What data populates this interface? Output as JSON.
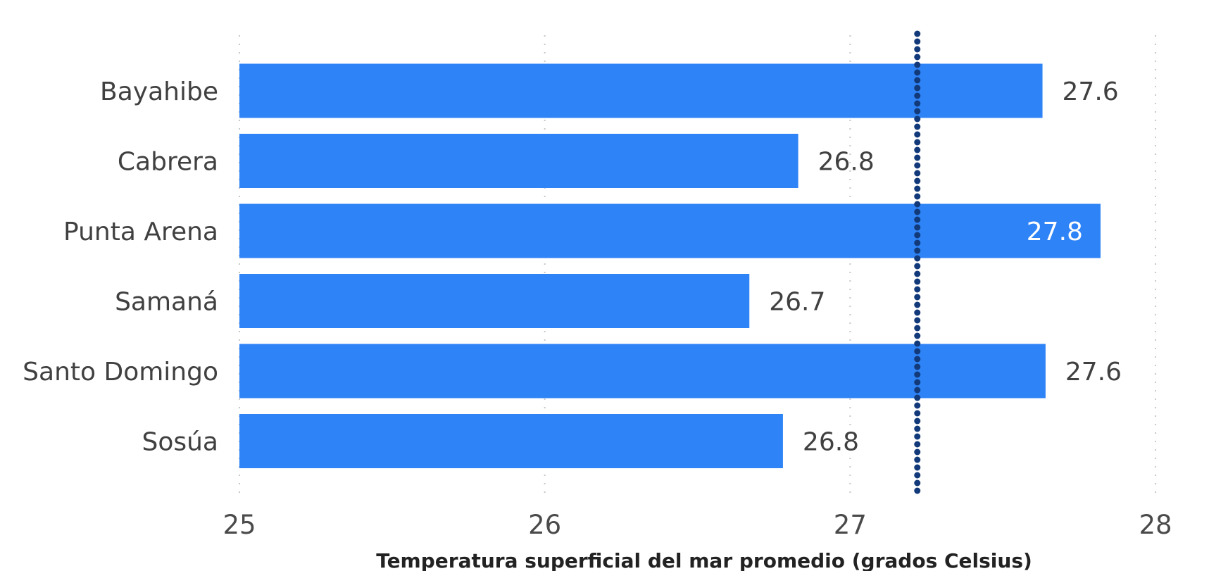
{
  "chart_data": {
    "type": "bar",
    "orientation": "horizontal",
    "categories": [
      "Bayahibe",
      "Cabrera",
      "Punta Arena",
      "Samaná",
      "Santo Domingo",
      "Sosúa"
    ],
    "values": [
      27.63,
      26.83,
      27.82,
      26.67,
      27.64,
      26.78
    ],
    "data_labels": [
      "27.6",
      "26.8",
      "27.8",
      "26.7",
      "27.6",
      "26.8"
    ],
    "xlim": [
      25,
      28
    ],
    "x_ticks": [
      "25",
      "26",
      "27",
      "28"
    ],
    "xlabel": "Temperatura superficial del mar promedio (grados Celsius)",
    "ylabel": "",
    "reference_line": {
      "value": 27.22,
      "style": "dotted"
    },
    "grid": "vertical dotted",
    "colors": {
      "bar": "#2e83f6",
      "reference_line": "#123a7a",
      "grid": "#c8c8c8"
    }
  }
}
